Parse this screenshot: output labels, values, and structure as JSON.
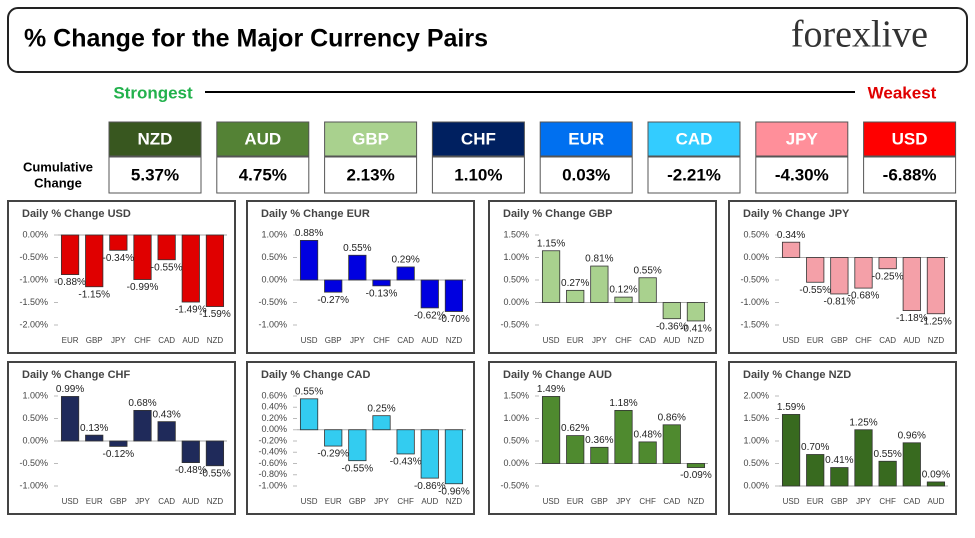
{
  "header": {
    "title": "% Change for the Major Currency Pairs",
    "logo": "forexlive"
  },
  "strength_scale": {
    "strongest": "Strongest",
    "weakest": "Weakest"
  },
  "summary": {
    "label_lines": [
      "Cumulative",
      "Change"
    ],
    "items": [
      {
        "code": "NZD",
        "change": "5.37%",
        "color": "#38571f"
      },
      {
        "code": "AUD",
        "change": "4.75%",
        "color": "#548235"
      },
      {
        "code": "GBP",
        "change": "2.13%",
        "color": "#a9d18e"
      },
      {
        "code": "CHF",
        "change": "1.10%",
        "color": "#002060"
      },
      {
        "code": "EUR",
        "change": "0.03%",
        "color": "#0070f0"
      },
      {
        "code": "CAD",
        "change": "-2.21%",
        "color": "#33ccff"
      },
      {
        "code": "JPY",
        "change": "-4.30%",
        "color": "#ff8f9a"
      },
      {
        "code": "USD",
        "change": "-6.88%",
        "color": "#ff0000"
      }
    ]
  },
  "chart_data": [
    {
      "type": "bar",
      "title": "Daily % Change USD",
      "color": "#e00000",
      "categories": [
        "EUR",
        "GBP",
        "JPY",
        "CHF",
        "CAD",
        "AUD",
        "NZD"
      ],
      "values": [
        -0.88,
        -1.15,
        -0.34,
        -0.99,
        -0.55,
        -1.49,
        -1.59
      ],
      "value_labels": [
        "-0.88%",
        "-1.15%",
        "-0.34%",
        "-0.99%",
        "-0.55%",
        "-1.49%",
        "-1.59%"
      ],
      "ylim": [
        -2.0,
        0.0
      ],
      "yticks": [
        {
          "value": 0.0,
          "label": "0.00%"
        },
        {
          "value": -0.5,
          "label": "-0.50%"
        },
        {
          "value": -1.0,
          "label": "-1.00%"
        },
        {
          "value": -1.5,
          "label": "-1.50%"
        },
        {
          "value": -2.0,
          "label": "-2.00%"
        }
      ]
    },
    {
      "type": "bar",
      "title": "Daily % Change EUR",
      "color": "#0000e0",
      "categories": [
        "USD",
        "GBP",
        "JPY",
        "CHF",
        "CAD",
        "AUD",
        "NZD"
      ],
      "values": [
        0.88,
        -0.27,
        0.55,
        -0.13,
        0.29,
        -0.62,
        -0.7
      ],
      "value_labels": [
        "0.88%",
        "-0.27%",
        "0.55%",
        "-0.13%",
        "0.29%",
        "-0.62%",
        "-0.70%"
      ],
      "ylim": [
        -1.0,
        1.0
      ],
      "yticks": [
        {
          "value": 1.0,
          "label": "1.00%"
        },
        {
          "value": 0.5,
          "label": "0.50%"
        },
        {
          "value": 0.0,
          "label": "0.00%"
        },
        {
          "value": -0.5,
          "label": "-0.50%"
        },
        {
          "value": -1.0,
          "label": "-1.00%"
        }
      ]
    },
    {
      "type": "bar",
      "title": "Daily % Change GBP",
      "color": "#a9d18e",
      "categories": [
        "USD",
        "EUR",
        "JPY",
        "CHF",
        "CAD",
        "AUD",
        "NZD"
      ],
      "values": [
        1.15,
        0.27,
        0.81,
        0.12,
        0.55,
        -0.36,
        -0.41
      ],
      "value_labels": [
        "1.15%",
        "0.27%",
        "0.81%",
        "0.12%",
        "0.55%",
        "-0.36%",
        "-0.41%"
      ],
      "ylim": [
        -0.5,
        1.5
      ],
      "yticks": [
        {
          "value": 1.5,
          "label": "1.50%"
        },
        {
          "value": 1.0,
          "label": "1.00%"
        },
        {
          "value": 0.5,
          "label": "0.50%"
        },
        {
          "value": 0.0,
          "label": "0.00%"
        },
        {
          "value": -0.5,
          "label": "-0.50%"
        }
      ]
    },
    {
      "type": "bar",
      "title": "Daily % Change JPY",
      "color": "#f4a0a8",
      "categories": [
        "USD",
        "EUR",
        "GBP",
        "CHF",
        "CAD",
        "AUD",
        "NZD"
      ],
      "values": [
        0.34,
        -0.55,
        -0.81,
        -0.68,
        -0.25,
        -1.18,
        -1.25
      ],
      "value_labels": [
        "0.34%",
        "-0.55%",
        "-0.81%",
        "-0.68%",
        "-0.25%",
        "-1.18%",
        "-1.25%"
      ],
      "ylim": [
        -1.5,
        0.5
      ],
      "yticks": [
        {
          "value": 0.5,
          "label": "0.50%"
        },
        {
          "value": 0.0,
          "label": "0.00%"
        },
        {
          "value": -0.5,
          "label": "-0.50%"
        },
        {
          "value": -1.0,
          "label": "-1.00%"
        },
        {
          "value": -1.5,
          "label": "-1.50%"
        }
      ]
    },
    {
      "type": "bar",
      "title": "Daily % Change CHF",
      "color": "#1f2a5a",
      "categories": [
        "USD",
        "EUR",
        "GBP",
        "JPY",
        "CAD",
        "AUD",
        "NZD"
      ],
      "values": [
        0.99,
        0.13,
        -0.12,
        0.68,
        0.43,
        -0.48,
        -0.55
      ],
      "value_labels": [
        "0.99%",
        "0.13%",
        "-0.12%",
        "0.68%",
        "0.43%",
        "-0.48%",
        "-0.55%"
      ],
      "ylim": [
        -1.0,
        1.0
      ],
      "yticks": [
        {
          "value": 1.0,
          "label": "1.00%"
        },
        {
          "value": 0.5,
          "label": "0.50%"
        },
        {
          "value": 0.0,
          "label": "0.00%"
        },
        {
          "value": -0.5,
          "label": "-0.50%"
        },
        {
          "value": -1.0,
          "label": "-1.00%"
        }
      ]
    },
    {
      "type": "bar",
      "title": "Daily % Change CAD",
      "color": "#33ccf0",
      "categories": [
        "USD",
        "EUR",
        "GBP",
        "JPY",
        "CHF",
        "AUD",
        "NZD"
      ],
      "values": [
        0.55,
        -0.29,
        -0.55,
        0.25,
        -0.43,
        -0.86,
        -0.96
      ],
      "value_labels": [
        "0.55%",
        "-0.29%",
        "-0.55%",
        "0.25%",
        "-0.43%",
        "-0.86%",
        "-0.96%"
      ],
      "ylim": [
        -1.0,
        0.6
      ],
      "yticks": [
        {
          "value": 0.6,
          "label": "0.60%"
        },
        {
          "value": 0.4,
          "label": "0.40%"
        },
        {
          "value": 0.2,
          "label": "0.20%"
        },
        {
          "value": 0.0,
          "label": "0.00%"
        },
        {
          "value": -0.2,
          "label": "-0.20%"
        },
        {
          "value": -0.4,
          "label": "-0.40%"
        },
        {
          "value": -0.6,
          "label": "-0.60%"
        },
        {
          "value": -0.8,
          "label": "-0.80%"
        },
        {
          "value": -1.0,
          "label": "-1.00%"
        }
      ]
    },
    {
      "type": "bar",
      "title": "Daily % Change AUD",
      "color": "#4f8a2f",
      "categories": [
        "USD",
        "EUR",
        "GBP",
        "JPY",
        "CHF",
        "CAD",
        "NZD"
      ],
      "values": [
        1.49,
        0.62,
        0.36,
        1.18,
        0.48,
        0.86,
        -0.09
      ],
      "value_labels": [
        "1.49%",
        "0.62%",
        "0.36%",
        "1.18%",
        "0.48%",
        "0.86%",
        "-0.09%"
      ],
      "ylim": [
        -0.5,
        1.5
      ],
      "yticks": [
        {
          "value": 1.5,
          "label": "1.50%"
        },
        {
          "value": 1.0,
          "label": "1.00%"
        },
        {
          "value": 0.5,
          "label": "0.50%"
        },
        {
          "value": 0.0,
          "label": "0.00%"
        },
        {
          "value": -0.5,
          "label": "-0.50%"
        }
      ]
    },
    {
      "type": "bar",
      "title": "Daily % Change NZD",
      "color": "#386a1f",
      "categories": [
        "USD",
        "EUR",
        "GBP",
        "JPY",
        "CHF",
        "CAD",
        "AUD"
      ],
      "values": [
        1.59,
        0.7,
        0.41,
        1.25,
        0.55,
        0.96,
        0.09
      ],
      "value_labels": [
        "1.59%",
        "0.70%",
        "0.41%",
        "1.25%",
        "0.55%",
        "0.96%",
        "0.09%"
      ],
      "ylim": [
        0.0,
        2.0
      ],
      "yticks": [
        {
          "value": 2.0,
          "label": "2.00%"
        },
        {
          "value": 1.5,
          "label": "1.50%"
        },
        {
          "value": 1.0,
          "label": "1.00%"
        },
        {
          "value": 0.5,
          "label": "0.50%"
        },
        {
          "value": 0.0,
          "label": "0.00%"
        }
      ]
    }
  ]
}
